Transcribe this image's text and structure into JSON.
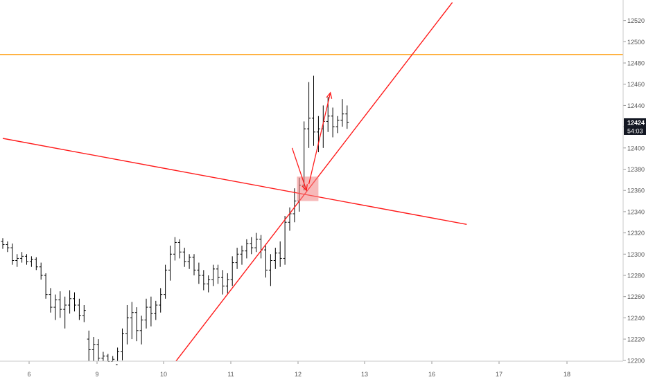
{
  "chart_data": {
    "type": "ohlc",
    "symbol_currency": "",
    "y_axis": {
      "range": [
        12194,
        12538
      ],
      "ticks": [
        12200,
        12220,
        12240,
        12260,
        12280,
        12300,
        12320,
        12340,
        12360,
        12380,
        12400,
        12420,
        12440,
        12460,
        12480,
        12500,
        12520
      ],
      "tick_labels": [
        "12200",
        "12220",
        "12240",
        "12260",
        "12280",
        "12300",
        "12320",
        "12340",
        "12360",
        "12380",
        "12400",
        "12420",
        "12440",
        "12460",
        "12480",
        "12500",
        "12520"
      ]
    },
    "x_axis": {
      "tick_labels": [
        "6",
        "9",
        "10",
        "11",
        "12",
        "13",
        "16",
        "17",
        "18"
      ]
    },
    "last_price_label": "12424",
    "countdown_label": "54:03",
    "colors": {
      "bars": "#000000",
      "trendlines": "#ff1a1a",
      "horizontal_level": "#ffa726",
      "zone_fill": "#f08080",
      "price_tag_bg": "#131722",
      "axis_text": "#555555"
    },
    "bars": [
      [
        0,
        12312,
        12315,
        12305,
        12309
      ],
      [
        1,
        12309,
        12312,
        12302,
        12306
      ],
      [
        2,
        12306,
        12310,
        12290,
        12294
      ],
      [
        3,
        12294,
        12300,
        12288,
        12296
      ],
      [
        4,
        12296,
        12302,
        12292,
        12298
      ],
      [
        5,
        12298,
        12300,
        12290,
        12293
      ],
      [
        6,
        12293,
        12298,
        12288,
        12295
      ],
      [
        7,
        12295,
        12297,
        12285,
        12288
      ],
      [
        8,
        12288,
        12292,
        12276,
        12280
      ],
      [
        9,
        12280,
        12282,
        12258,
        12262
      ],
      [
        10,
        12262,
        12268,
        12245,
        12250
      ],
      [
        11,
        12250,
        12262,
        12238,
        12257
      ],
      [
        12,
        12257,
        12265,
        12240,
        12248
      ],
      [
        13,
        12248,
        12260,
        12230,
        12252
      ],
      [
        14,
        12252,
        12266,
        12244,
        12258
      ],
      [
        15,
        12258,
        12264,
        12246,
        12252
      ],
      [
        16,
        12252,
        12258,
        12238,
        12242
      ],
      [
        17,
        12242,
        12252,
        12236,
        12247
      ],
      [
        18,
        12220,
        12228,
        12198,
        12210
      ],
      [
        19,
        12210,
        12222,
        12195,
        12215
      ],
      [
        20,
        12215,
        12220,
        12196,
        12202
      ],
      [
        21,
        12202,
        12208,
        12196,
        12204
      ],
      [
        22,
        12204,
        12206,
        12196,
        12199
      ],
      [
        23,
        12199,
        12204,
        12195,
        12201
      ],
      [
        24,
        12196,
        12212,
        12194,
        12208
      ],
      [
        25,
        12208,
        12230,
        12200,
        12225
      ],
      [
        26,
        12225,
        12252,
        12215,
        12240
      ],
      [
        27,
        12240,
        12255,
        12220,
        12245
      ],
      [
        28,
        12245,
        12250,
        12218,
        12228
      ],
      [
        29,
        12228,
        12242,
        12215,
        12238
      ],
      [
        30,
        12238,
        12258,
        12230,
        12250
      ],
      [
        31,
        12250,
        12260,
        12232,
        12244
      ],
      [
        32,
        12244,
        12256,
        12238,
        12252
      ],
      [
        33,
        12252,
        12268,
        12245,
        12262
      ],
      [
        34,
        12262,
        12290,
        12258,
        12285
      ],
      [
        35,
        12285,
        12308,
        12275,
        12300
      ],
      [
        36,
        12300,
        12316,
        12294,
        12311
      ],
      [
        37,
        12311,
        12314,
        12296,
        12302
      ],
      [
        38,
        12302,
        12306,
        12288,
        12293
      ],
      [
        39,
        12293,
        12300,
        12286,
        12297
      ],
      [
        40,
        12297,
        12300,
        12280,
        12285
      ],
      [
        41,
        12285,
        12292,
        12272,
        12280
      ],
      [
        42,
        12280,
        12285,
        12266,
        12272
      ],
      [
        43,
        12272,
        12280,
        12264,
        12276
      ],
      [
        44,
        12276,
        12290,
        12270,
        12286
      ],
      [
        45,
        12286,
        12290,
        12272,
        12278
      ],
      [
        46,
        12278,
        12285,
        12262,
        12270
      ],
      [
        47,
        12270,
        12282,
        12263,
        12276
      ],
      [
        48,
        12276,
        12298,
        12270,
        12292
      ],
      [
        49,
        12292,
        12306,
        12286,
        12300
      ],
      [
        50,
        12300,
        12308,
        12290,
        12303
      ],
      [
        51,
        12303,
        12314,
        12296,
        12310
      ],
      [
        52,
        12310,
        12316,
        12300,
        12306
      ],
      [
        53,
        12306,
        12320,
        12302,
        12314
      ],
      [
        54,
        12314,
        12318,
        12296,
        12304
      ],
      [
        55,
        12304,
        12308,
        12278,
        12285
      ],
      [
        56,
        12285,
        12300,
        12270,
        12294
      ],
      [
        57,
        12294,
        12306,
        12286,
        12301
      ],
      [
        58,
        12301,
        12312,
        12288,
        12296
      ],
      [
        59,
        12296,
        12336,
        12290,
        12330
      ],
      [
        60,
        12330,
        12344,
        12322,
        12338
      ],
      [
        61,
        12338,
        12362,
        12330,
        12350
      ],
      [
        62,
        12350,
        12372,
        12340,
        12365
      ],
      [
        63,
        12365,
        12425,
        12360,
        12418
      ],
      [
        64,
        12418,
        12462,
        12400,
        12428
      ],
      [
        65,
        12428,
        12468,
        12402,
        12415
      ],
      [
        66,
        12415,
        12430,
        12396,
        12418
      ],
      [
        67,
        12418,
        12440,
        12400,
        12425
      ],
      [
        68,
        12425,
        12448,
        12415,
        12430
      ],
      [
        69,
        12430,
        12438,
        12410,
        12420
      ],
      [
        70,
        12420,
        12430,
        12414,
        12426
      ],
      [
        71,
        12426,
        12446,
        12420,
        12432
      ],
      [
        72,
        12432,
        12440,
        12418,
        12424
      ]
    ],
    "annotations": [
      {
        "type": "horizontal_line",
        "price": 12488
      },
      {
        "type": "descending_trendline",
        "from": {
          "t": 0,
          "price": 12409
        },
        "to": {
          "t": 97,
          "price": 12328
        }
      },
      {
        "type": "ascending_trendline",
        "from": {
          "t": 36,
          "price": 12198
        },
        "to": {
          "t": 94,
          "price": 12537
        }
      },
      {
        "type": "zone",
        "t": [
          61.5,
          66
        ],
        "price": [
          12350,
          12373
        ]
      },
      {
        "type": "arrow",
        "from": {
          "t": 60.5,
          "price": 12400
        },
        "to": {
          "t": 63.5,
          "price": 12360
        }
      },
      {
        "type": "arrow",
        "from": {
          "t": 64,
          "price": 12366
        },
        "to": {
          "t": 68.5,
          "price": 12452
        }
      }
    ]
  }
}
